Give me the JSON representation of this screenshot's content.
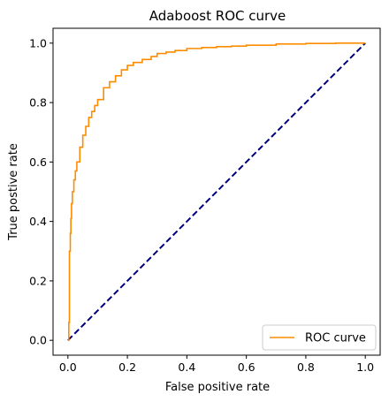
{
  "chart_data": {
    "type": "line",
    "title": "Adaboost ROC curve",
    "xlabel": "False positive rate",
    "ylabel": "True postive rate",
    "xlim": [
      -0.05,
      1.05
    ],
    "ylim": [
      -0.05,
      1.05
    ],
    "xticks": [
      "0.0",
      "0.2",
      "0.4",
      "0.6",
      "0.8",
      "1.0"
    ],
    "yticks": [
      "0.0",
      "0.2",
      "0.4",
      "0.6",
      "0.8",
      "1.0"
    ],
    "grid": false,
    "legend_position": "lower-right",
    "series": [
      {
        "name": "ROC curve",
        "color": "#ff8c00",
        "x": [
          0.0,
          0.003,
          0.005,
          0.008,
          0.01,
          0.012,
          0.015,
          0.02,
          0.025,
          0.03,
          0.04,
          0.05,
          0.06,
          0.07,
          0.08,
          0.09,
          0.1,
          0.12,
          0.14,
          0.16,
          0.18,
          0.2,
          0.22,
          0.25,
          0.28,
          0.3,
          0.33,
          0.36,
          0.4,
          0.45,
          0.5,
          0.55,
          0.6,
          0.7,
          0.8,
          0.9,
          1.0
        ],
        "y": [
          0.0,
          0.06,
          0.3,
          0.36,
          0.41,
          0.46,
          0.5,
          0.54,
          0.57,
          0.6,
          0.65,
          0.69,
          0.72,
          0.75,
          0.77,
          0.79,
          0.81,
          0.85,
          0.87,
          0.89,
          0.91,
          0.925,
          0.935,
          0.945,
          0.955,
          0.965,
          0.97,
          0.975,
          0.982,
          0.985,
          0.988,
          0.99,
          0.993,
          0.997,
          0.999,
          1.0,
          1.0
        ]
      },
      {
        "name": "",
        "color": "#000080",
        "dashed": true,
        "x": [
          0.0,
          1.0
        ],
        "y": [
          0.0,
          1.0
        ]
      }
    ]
  }
}
